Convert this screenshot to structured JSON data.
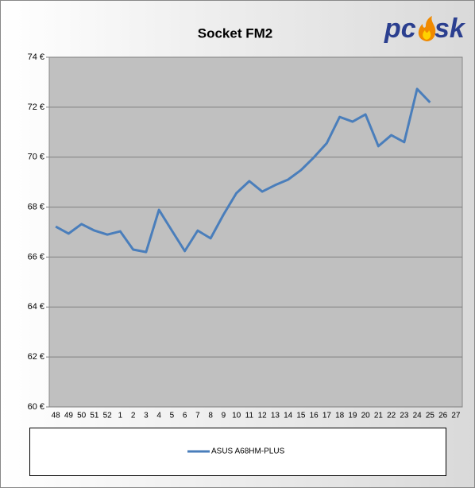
{
  "chart_data": {
    "type": "line",
    "title": "Socket FM2",
    "logo": {
      "left": "pc",
      "right": "sk"
    },
    "categories": [
      "48",
      "49",
      "50",
      "51",
      "52",
      "1",
      "2",
      "3",
      "4",
      "5",
      "6",
      "7",
      "8",
      "9",
      "10",
      "11",
      "12",
      "13",
      "14",
      "15",
      "16",
      "17",
      "18",
      "19",
      "20",
      "21",
      "22",
      "23",
      "24",
      "25",
      "26",
      "27"
    ],
    "series": [
      {
        "name": "ASUS A68HM-PLUS",
        "color": "#4a7ebb",
        "values": [
          67.22,
          66.94,
          67.32,
          67.06,
          66.9,
          67.03,
          66.3,
          66.2,
          67.89,
          67.06,
          66.24,
          67.06,
          66.75,
          67.7,
          68.56,
          69.04,
          68.62,
          68.88,
          69.1,
          69.48,
          69.99,
          70.56,
          71.61,
          71.42,
          71.71,
          70.44,
          70.88,
          70.6,
          72.73,
          72.19,
          null,
          null
        ]
      }
    ],
    "ylim": [
      60,
      74
    ],
    "yticks": [
      {
        "value": 60,
        "label": "60 €"
      },
      {
        "value": 62,
        "label": "62 €"
      },
      {
        "value": 64,
        "label": "64 €"
      },
      {
        "value": 66,
        "label": "66 €"
      },
      {
        "value": 68,
        "label": "68 €"
      },
      {
        "value": 70,
        "label": "70 €"
      },
      {
        "value": 72,
        "label": "72 €"
      },
      {
        "value": 74,
        "label": "74 €"
      }
    ],
    "grid": true,
    "plot_background": "#c0c0c0"
  }
}
